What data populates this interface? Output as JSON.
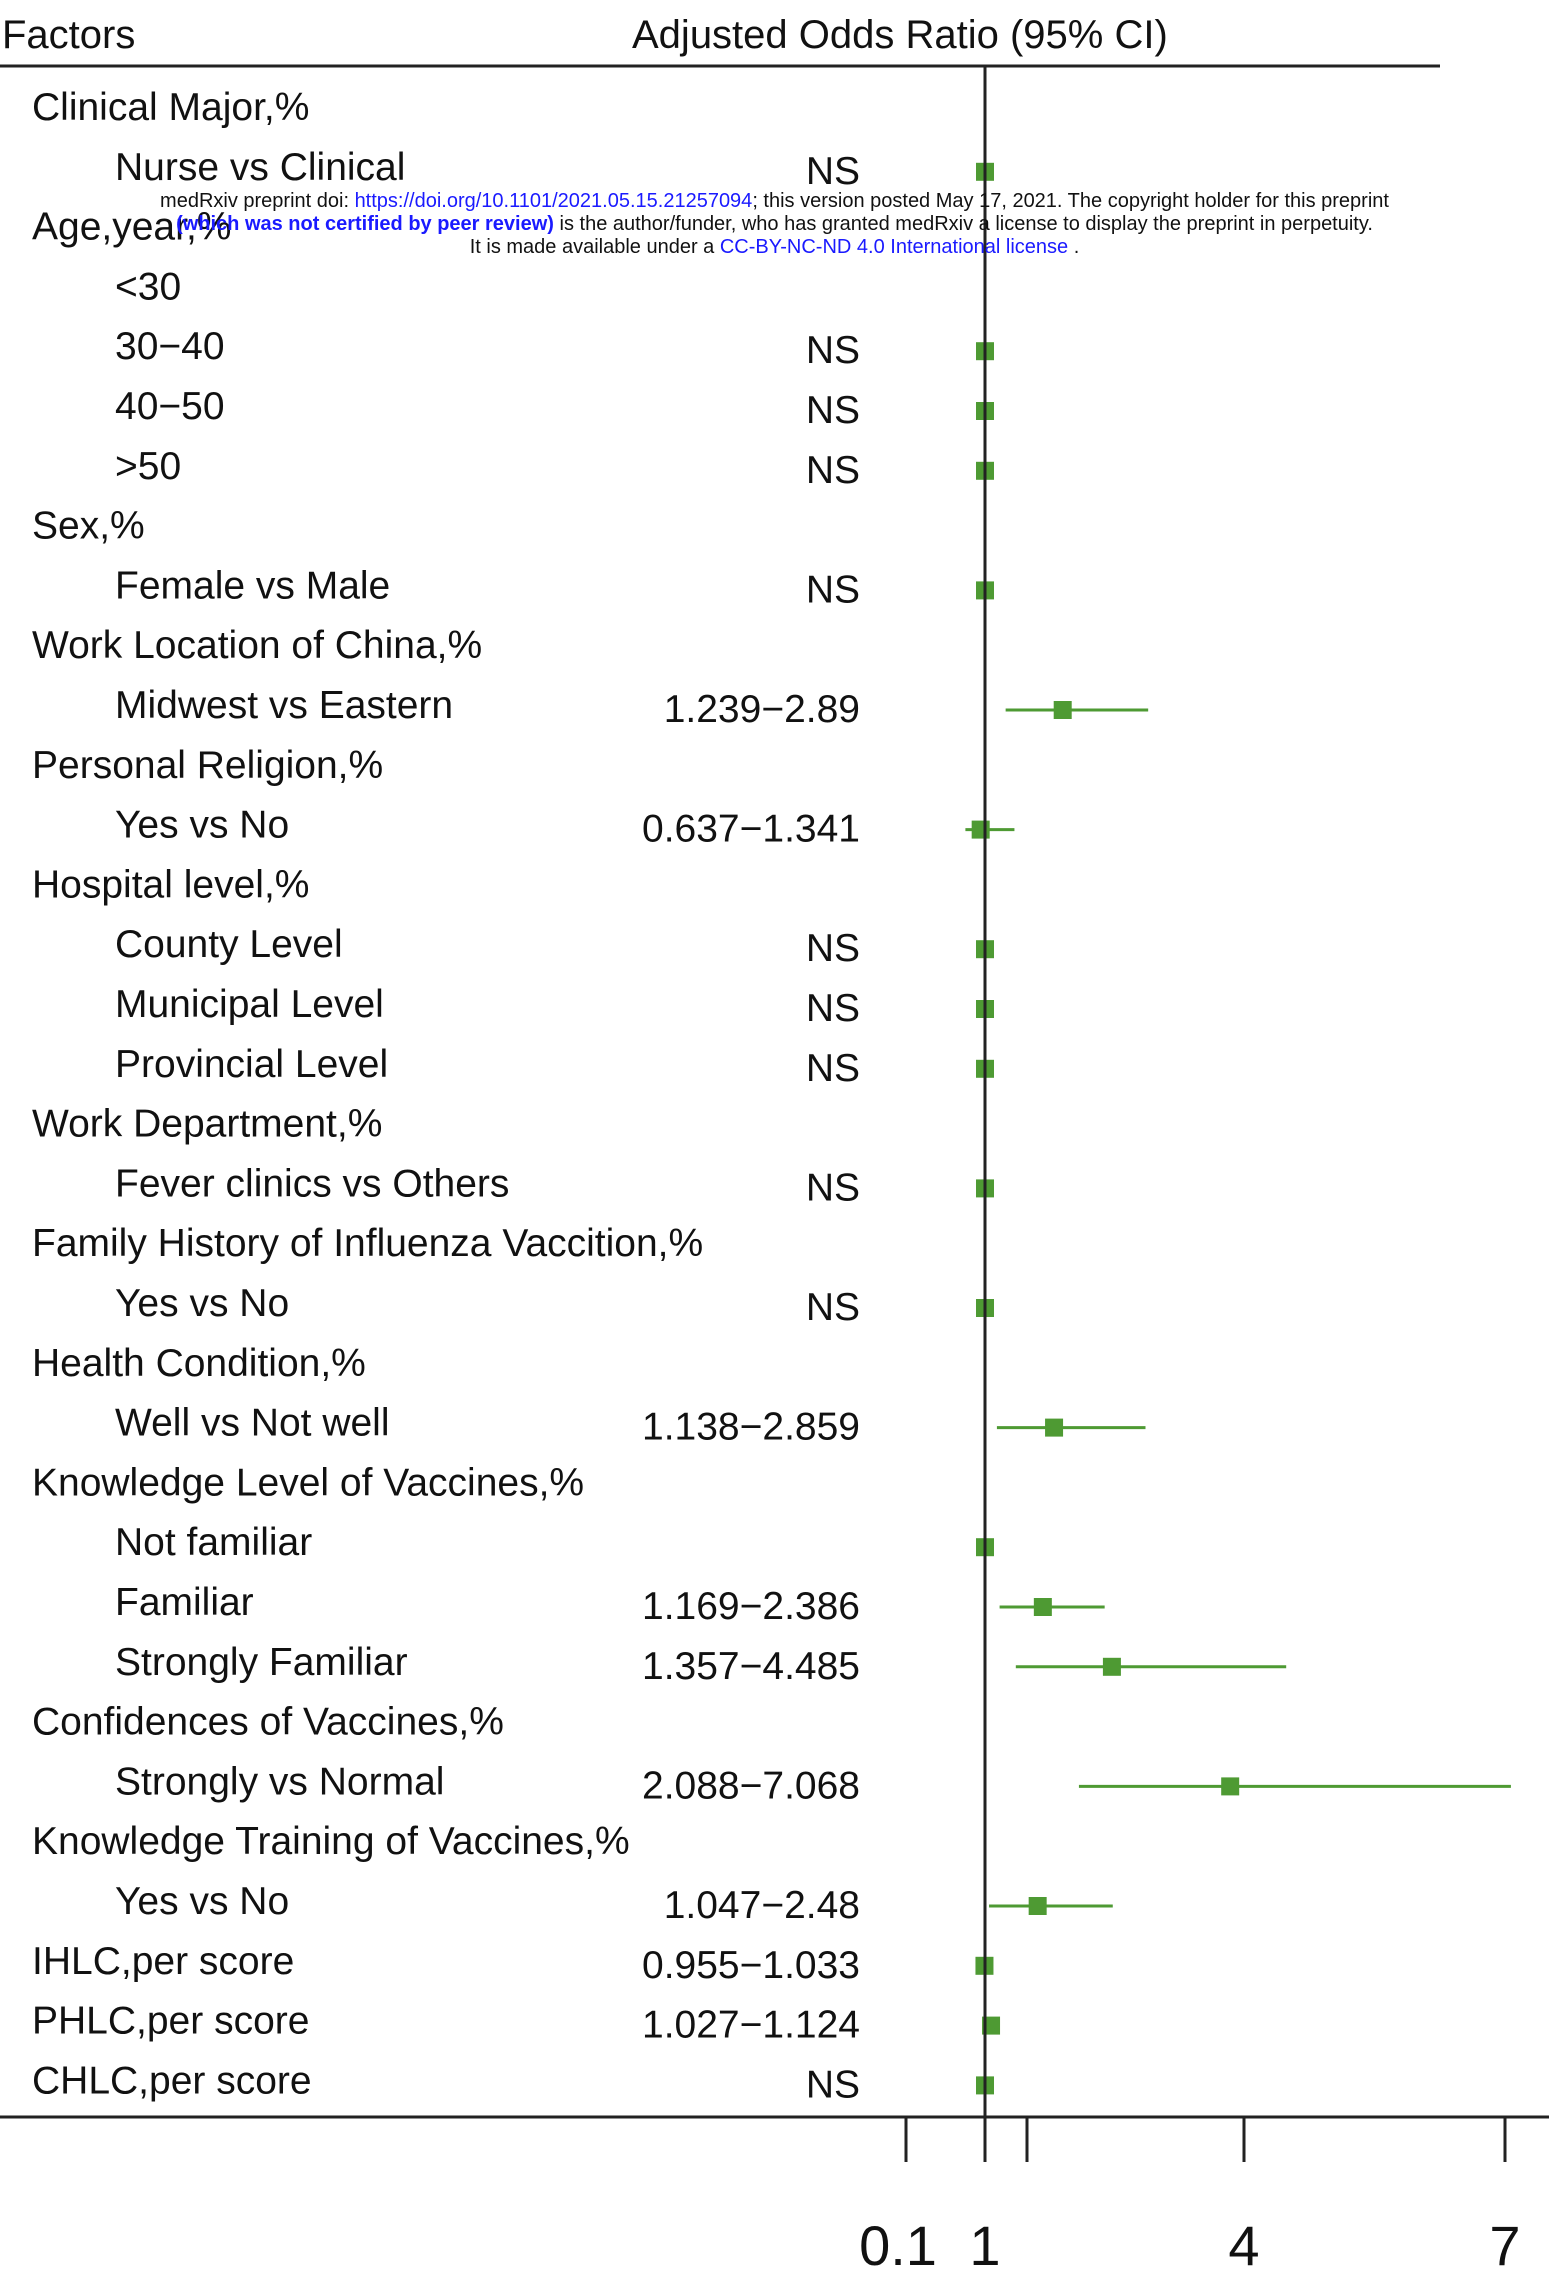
{
  "chart_data": {
    "type": "forest",
    "header": {
      "factors": "Factors",
      "measure": "Adjusted Odds Ratio  (95% CI)"
    },
    "xaxis": {
      "ticks": [
        0,
        0.1,
        1,
        4,
        7
      ],
      "tick_labels": [
        "",
        "0.1",
        "1",
        "4",
        "7"
      ]
    },
    "reference_line": 1,
    "marker_color": "#4e9a33",
    "rows": [
      {
        "type": "category",
        "label": "Clinical Major,%"
      },
      {
        "type": "item",
        "label": "Nurse vs Clinical",
        "ci_text": "NS",
        "or": 1.0
      },
      {
        "type": "category",
        "label": "Age,year,%"
      },
      {
        "type": "item",
        "label": "<30",
        "ci_text": ""
      },
      {
        "type": "item",
        "label": "30−40",
        "ci_text": "NS",
        "or": 1.0
      },
      {
        "type": "item",
        "label": "40−50",
        "ci_text": "NS",
        "or": 1.0
      },
      {
        "type": "item",
        "label": ">50",
        "ci_text": "NS",
        "or": 1.0
      },
      {
        "type": "category",
        "label": "Sex,%"
      },
      {
        "type": "item",
        "label": "Female vs Male",
        "ci_text": "NS",
        "or": 1.0
      },
      {
        "type": "category",
        "label": "Work Location of China,%"
      },
      {
        "type": "item",
        "label": "Midwest vs Eastern",
        "ci_text": "1.239−2.89",
        "or": 1.9,
        "lo": 1.239,
        "hi": 2.89
      },
      {
        "type": "category",
        "label": "Personal Religion,%"
      },
      {
        "type": "item",
        "label": "Yes vs No",
        "ci_text": "0.637−1.341",
        "or": 0.92,
        "lo": 0.637,
        "hi": 1.341
      },
      {
        "type": "category",
        "label": "Hospital level,%"
      },
      {
        "type": "item",
        "label": "County Level",
        "ci_text": "NS",
        "or": 1.0
      },
      {
        "type": "item",
        "label": "Municipal Level",
        "ci_text": "NS",
        "or": 1.0
      },
      {
        "type": "item",
        "label": "Provincial Level",
        "ci_text": "NS",
        "or": 1.0
      },
      {
        "type": "category",
        "label": "Work Department,%"
      },
      {
        "type": "item",
        "label": "Fever clinics  vs Others",
        "ci_text": "NS",
        "or": 1.0
      },
      {
        "type": "category",
        "label": "Family History of Influenza Vaccition,%"
      },
      {
        "type": "item",
        "label": "Yes  vs  No",
        "ci_text": "NS",
        "or": 1.0
      },
      {
        "type": "category",
        "label": "Health Condition,%"
      },
      {
        "type": "item",
        "label": "Well vs Not well",
        "ci_text": "1.138−2.859",
        "or": 1.8,
        "lo": 1.138,
        "hi": 2.859
      },
      {
        "type": "category",
        "label": "Knowledge Level of Vaccines,%"
      },
      {
        "type": "item",
        "label": "Not familiar",
        "ci_text": "",
        "or": 1.0
      },
      {
        "type": "item",
        "label": "Familiar",
        "ci_text": "1.169−2.386",
        "or": 1.67,
        "lo": 1.169,
        "hi": 2.386
      },
      {
        "type": "item",
        "label": "Strongly Familiar",
        "ci_text": "1.357−4.485",
        "or": 2.47,
        "lo": 1.357,
        "hi": 4.485
      },
      {
        "type": "category",
        "label": "Confidences of Vaccines,%"
      },
      {
        "type": "item",
        "label": "Strongly vs Normal",
        "ci_text": "2.088−7.068",
        "or": 3.84,
        "lo": 2.088,
        "hi": 7.068
      },
      {
        "type": "category",
        "label": "Knowledge Training of Vaccines,%"
      },
      {
        "type": "item",
        "label": "Yes vs No",
        "ci_text": "1.047−2.48",
        "or": 1.61,
        "lo": 1.047,
        "hi": 2.48
      },
      {
        "type": "item",
        "label": "IHLC,per score",
        "ci_text": "0.955−1.033",
        "or": 0.99,
        "lo": 0.955,
        "hi": 1.033,
        "flush": true
      },
      {
        "type": "item",
        "label": "PHLC,per score",
        "ci_text": "1.027−1.124",
        "or": 1.07,
        "lo": 1.027,
        "hi": 1.124,
        "flush": true
      },
      {
        "type": "item",
        "label": "CHLC,per score",
        "ci_text": "NS",
        "or": 1.0,
        "flush": true
      }
    ]
  },
  "notice": {
    "line1_prefix": "medRxiv preprint doi: ",
    "line1_link": "https://doi.org/10.1101/2021.05.15.21257094",
    "line1_suffix": "; this version posted May 17, 2021. The copyright holder for this preprint",
    "line2_bold": "(which was not certified by peer review)",
    "line2_suffix": " is the author/funder, who has granted medRxiv a license to display the preprint in perpetuity.",
    "line3_prefix": "It is made available under a ",
    "line3_link": "CC-BY-NC-ND 4.0 International license",
    "line3_suffix": " ."
  }
}
